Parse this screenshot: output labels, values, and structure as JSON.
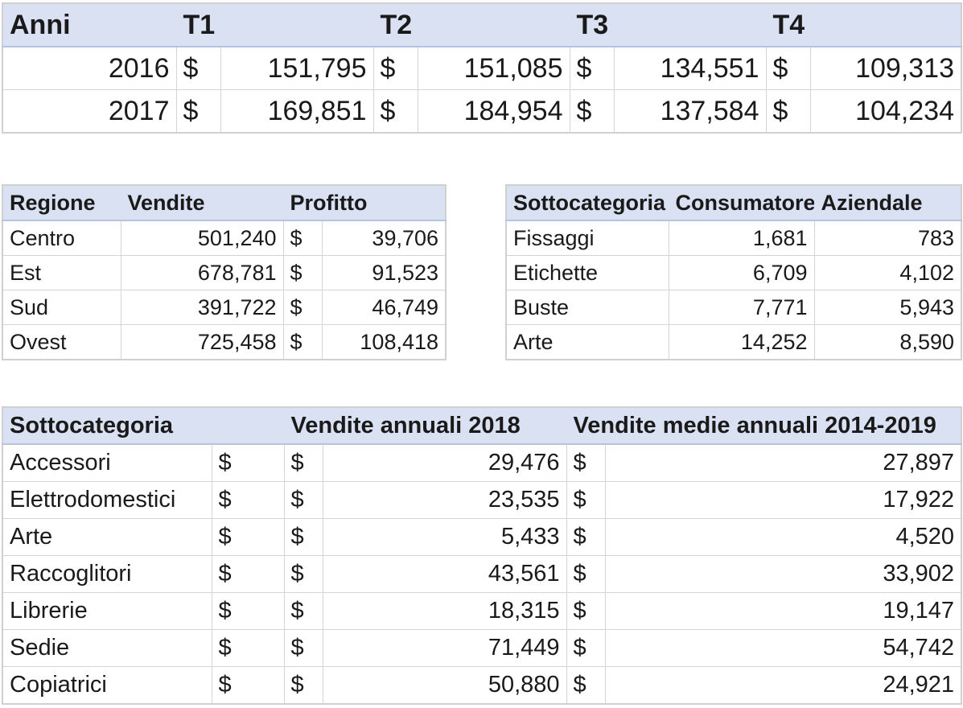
{
  "quarterly": {
    "headers": [
      "Anni",
      "T1",
      "T2",
      "T3",
      "T4"
    ],
    "currency": "$",
    "rows": [
      {
        "year": "2016",
        "values": [
          "151,795",
          "151,085",
          "134,551",
          "109,313"
        ]
      },
      {
        "year": "2017",
        "values": [
          "169,851",
          "184,954",
          "137,584",
          "104,234"
        ]
      }
    ]
  },
  "regions": {
    "headers": [
      "Regione",
      "Vendite",
      "Profitto"
    ],
    "currency": "$",
    "rows": [
      {
        "region": "Centro",
        "sales": "501,240",
        "profit": "39,706"
      },
      {
        "region": "Est",
        "sales": "678,781",
        "profit": "91,523"
      },
      {
        "region": "Sud",
        "sales": "391,722",
        "profit": "46,749"
      },
      {
        "region": "Ovest",
        "sales": "725,458",
        "profit": "108,418"
      }
    ]
  },
  "segments": {
    "headers": [
      "Sottocategoria",
      "Consumatore",
      "Aziendale"
    ],
    "rows": [
      {
        "name": "Fissaggi",
        "consumer": "1,681",
        "corporate": "783"
      },
      {
        "name": "Etichette",
        "consumer": "6,709",
        "corporate": "4,102"
      },
      {
        "name": "Buste",
        "consumer": "7,771",
        "corporate": "5,943"
      },
      {
        "name": "Arte",
        "consumer": "14,252",
        "corporate": "8,590"
      }
    ]
  },
  "annual": {
    "headers": [
      "Sottocategoria",
      "Vendite annuali 2018",
      "Vendite medie annuali 2014-2019"
    ],
    "currency": "$",
    "rows": [
      {
        "name": "Accessori",
        "sales2018": "29,476",
        "avg": "27,897"
      },
      {
        "name": "Elettrodomestici",
        "sales2018": "23,535",
        "avg": "17,922"
      },
      {
        "name": "Arte",
        "sales2018": "5,433",
        "avg": "4,520"
      },
      {
        "name": "Raccoglitori",
        "sales2018": "43,561",
        "avg": "33,902"
      },
      {
        "name": "Librerie",
        "sales2018": "18,315",
        "avg": "19,147"
      },
      {
        "name": "Sedie",
        "sales2018": "71,449",
        "avg": "54,742"
      },
      {
        "name": "Copiatrici",
        "sales2018": "50,880",
        "avg": "24,921"
      }
    ]
  }
}
